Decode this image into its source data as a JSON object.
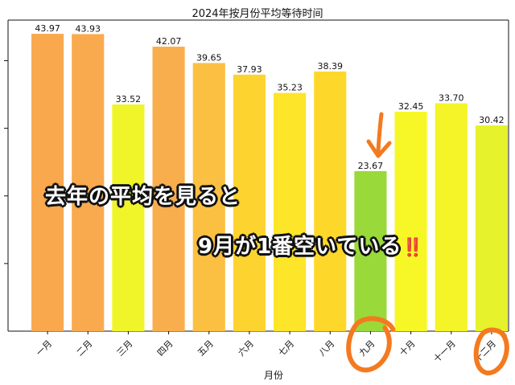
{
  "chart_data": {
    "type": "bar",
    "title": "2024年按月份平均等待时间",
    "xlabel": "月份",
    "ylabel": "",
    "categories": [
      "一月",
      "二月",
      "三月",
      "四月",
      "五月",
      "六月",
      "七月",
      "八月",
      "九月",
      "十月",
      "十一月",
      "十二月"
    ],
    "values": [
      43.97,
      43.93,
      33.52,
      42.07,
      39.65,
      37.93,
      35.23,
      38.39,
      23.67,
      32.45,
      33.7,
      30.42
    ],
    "value_labels": [
      "43.97",
      "43.93",
      "33.52",
      "42.07",
      "39.65",
      "37.93",
      "35.23",
      "38.39",
      "23.67",
      "32.45",
      "33.70",
      "30.42"
    ],
    "bar_colors": [
      "#f9a84e",
      "#f9aa4e",
      "#f0f52a",
      "#f9ae4d",
      "#fbc042",
      "#fdd330",
      "#fde52a",
      "#fdd82b",
      "#9ad93a",
      "#f7f727",
      "#f4f428",
      "#e6f22c"
    ],
    "ylim": [
      0,
      46
    ],
    "grid": false
  },
  "annotations": {
    "line1": "去年の平均を見ると",
    "line2": "9月が1番空いている",
    "line2_emoji": "‼️",
    "arrow_color": "#f47a1f",
    "circle_color": "#f47a1f"
  }
}
